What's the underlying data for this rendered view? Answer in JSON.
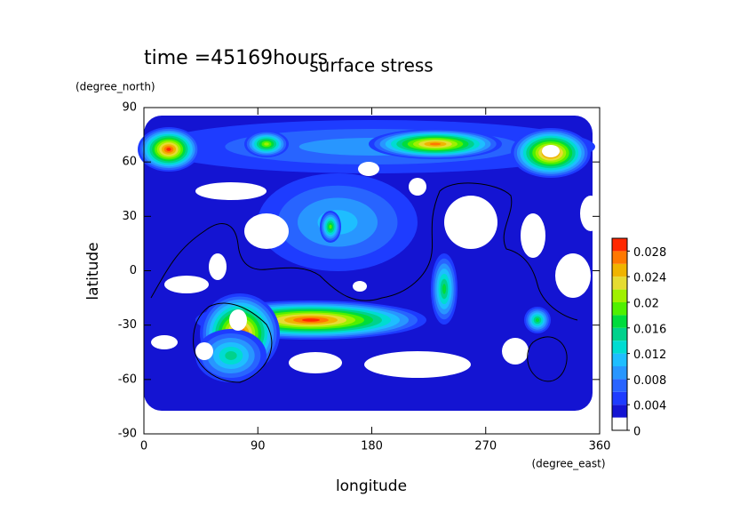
{
  "chart_data": {
    "type": "contour",
    "annotation": "time =45169hours",
    "title": "surface stress",
    "x_label": "longitude",
    "x_unit": "(degree_east)",
    "y_label": "latitude",
    "y_unit": "(degree_north)",
    "xlim": [
      0,
      360
    ],
    "xticks": [
      0,
      90,
      180,
      270,
      360
    ],
    "ylim": [
      -90,
      90
    ],
    "yticks": [
      -90,
      -60,
      -30,
      0,
      30,
      60,
      90
    ],
    "colorbar": {
      "levels": [
        0,
        0.002,
        0.004,
        0.006,
        0.008,
        0.01,
        0.012,
        0.014,
        0.016,
        0.018,
        0.02,
        0.022,
        0.024,
        0.026,
        0.028,
        0.03
      ],
      "colors": [
        "#ffffff",
        "#1414d2",
        "#1e3cff",
        "#2864ff",
        "#2896ff",
        "#1ebeff",
        "#00dcd2",
        "#00d28c",
        "#00dc3c",
        "#50f000",
        "#a0f000",
        "#e6dc32",
        "#f0b400",
        "#ff7800",
        "#ff2800"
      ],
      "ticks": [
        0,
        0.004,
        0.008,
        0.012,
        0.016,
        0.02,
        0.024,
        0.028
      ]
    }
  }
}
